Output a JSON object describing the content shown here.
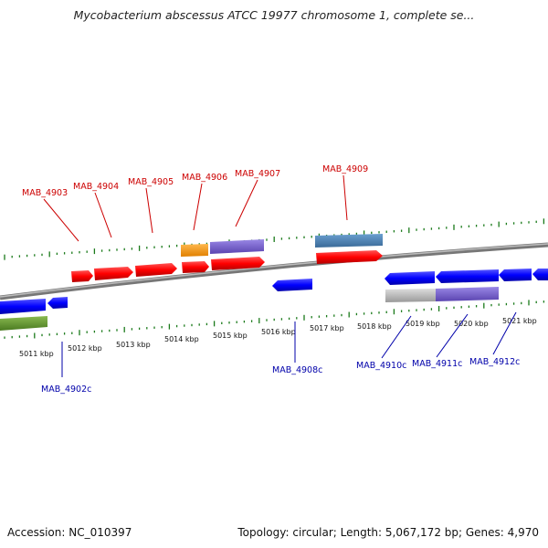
{
  "title": "Mycobacterium abscessus ATCC 19977 chromosome 1, complete se...",
  "footer": {
    "accession": "Accession: NC_010397",
    "topology": "Topology: circular; Length: 5,067,172 bp; Genes: 4,970"
  },
  "scale_labels": [
    "5011 kbp",
    "5012 kbp",
    "5013 kbp",
    "5014 kbp",
    "5015 kbp",
    "5016 kbp",
    "5017 kbp",
    "5018 kbp",
    "5019 kbp",
    "5020 kbp",
    "5021 kbp"
  ],
  "forward_genes": [
    "MAB_4903",
    "MAB_4904",
    "MAB_4905",
    "MAB_4906",
    "MAB_4907",
    "MAB_4909"
  ],
  "reverse_genes": [
    "MAB_4902c",
    "MAB_4908c",
    "MAB_4910c",
    "MAB_4911c",
    "MAB_4912c"
  ],
  "colors": {
    "forward_label": "#cc0000",
    "reverse_label": "#0000aa",
    "cds_forward": "#ff1a1a",
    "cds_reverse": "#1a1aff",
    "tick": "#1a7a1a",
    "backbone": "#888888",
    "orange_feature": "#ff9900",
    "purple_feature": "#7a60d0",
    "steel_feature": "#4a7fb0",
    "olive_feature": "#6a9a30",
    "grey_feature": "#bbbbbb"
  }
}
